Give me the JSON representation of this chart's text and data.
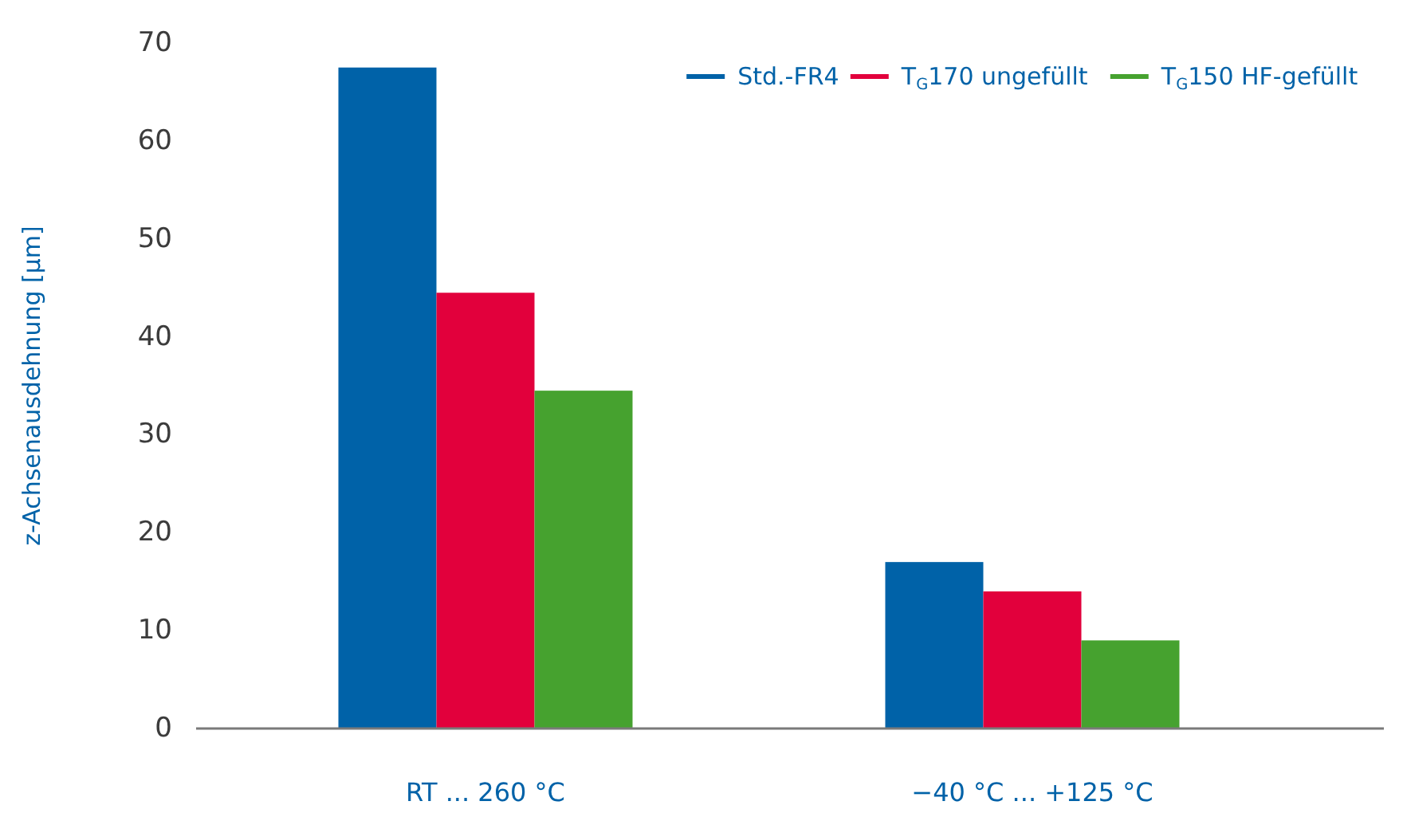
{
  "chart_data": {
    "type": "bar",
    "ylabel": "z-Achsenausdehnung [µm]",
    "categories": [
      "RT ... 260 °C",
      "−40 °C ... +125 °C"
    ],
    "series": [
      {
        "name": "Std.-FR4",
        "color": "#0062a8",
        "values": [
          67.5,
          17
        ]
      },
      {
        "name": "T$_{G}$170 ungefüllt",
        "color": "#e2003c",
        "values": [
          44.5,
          14
        ]
      },
      {
        "name": "T$_{G}$150 HF-gefüllt",
        "color": "#46a22f",
        "values": [
          34.5,
          9
        ]
      }
    ],
    "ylim": [
      0,
      70
    ],
    "yticks": [
      0,
      10,
      20,
      30,
      40,
      50,
      60,
      70
    ],
    "grid": false,
    "legend": "top right"
  }
}
